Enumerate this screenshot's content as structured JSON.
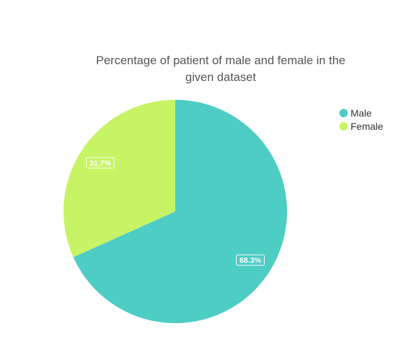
{
  "chart_data": {
    "type": "pie",
    "title": "Percentage of patient of male and female in the given dataset",
    "title_lines": [
      "Percentage of patient of male and female in the",
      "given dataset"
    ],
    "categories": [
      "Male",
      "Female"
    ],
    "values": [
      68.3,
      31.7
    ],
    "data_labels": [
      "68.3%",
      "31.7%"
    ],
    "colors": [
      "#4ecdc4",
      "#c7f464"
    ],
    "legend_position": "top-right",
    "start_angle": "12 o'clock",
    "direction": "clockwise"
  }
}
